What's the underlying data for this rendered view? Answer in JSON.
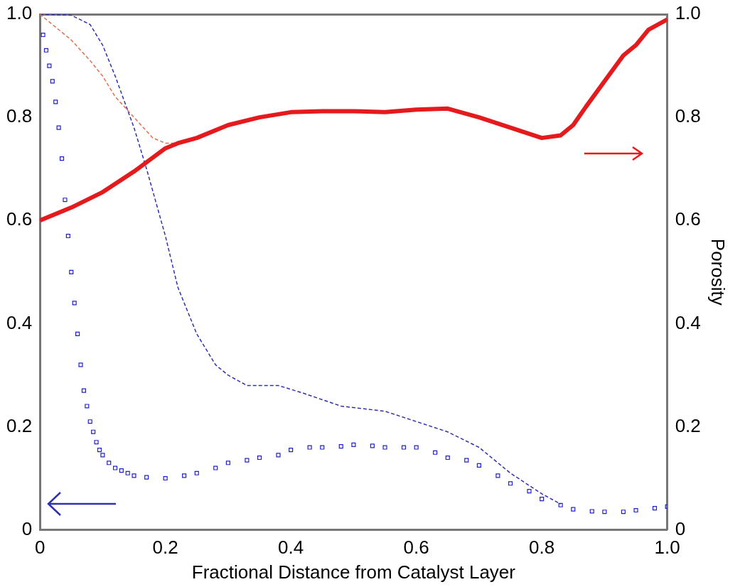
{
  "chart_data": {
    "type": "line",
    "xlabel": "Fractional Distance from Catalyst Layer",
    "y2label": "Porosity",
    "xlim": [
      0,
      1
    ],
    "xticks": [
      0,
      0.2,
      0.4,
      0.6,
      0.8,
      {
        "value": 1,
        "label": "1.0"
      }
    ],
    "ylim": [
      0,
      1
    ],
    "yticks": [
      0,
      0.2,
      0.4,
      0.6,
      0.8,
      {
        "value": 1,
        "label": "1.0"
      }
    ],
    "y2lim": [
      0,
      1
    ],
    "y2ticks": [
      0,
      0.2,
      0.4,
      0.6,
      0.8,
      {
        "value": 1,
        "label": "1.0"
      }
    ],
    "grid": false,
    "legend": false,
    "series": [
      {
        "type": "line",
        "axis": "y2",
        "color": "#e41a1c",
        "line_style": "solid",
        "marker": "none",
        "x": [
          0,
          0.05,
          0.1,
          0.15,
          0.2,
          0.22,
          0.25,
          0.3,
          0.35,
          0.4,
          0.45,
          0.5,
          0.55,
          0.6,
          0.65,
          0.7,
          0.75,
          0.8,
          0.83,
          0.85,
          0.87,
          0.9,
          0.93,
          0.95,
          0.97,
          1.0
        ],
        "values": [
          0.6,
          0.625,
          0.655,
          0.695,
          0.74,
          0.75,
          0.76,
          0.785,
          0.8,
          0.81,
          0.812,
          0.812,
          0.81,
          0.815,
          0.817,
          0.8,
          0.78,
          0.76,
          0.765,
          0.785,
          0.82,
          0.87,
          0.92,
          0.94,
          0.97,
          0.99
        ]
      },
      {
        "type": "line",
        "axis": "y2",
        "color": "#e07050",
        "line_style": "dashed",
        "marker": "none",
        "x": [
          0,
          0.03,
          0.05,
          0.08,
          0.1,
          0.12,
          0.15,
          0.18,
          0.2,
          0.22
        ],
        "values": [
          1.0,
          0.97,
          0.95,
          0.91,
          0.88,
          0.84,
          0.8,
          0.76,
          0.75,
          0.75
        ]
      },
      {
        "type": "line",
        "axis": "y",
        "color": "#3030b0",
        "line_style": "dashed",
        "marker": "none",
        "x": [
          0,
          0.05,
          0.08,
          0.1,
          0.12,
          0.15,
          0.17,
          0.2,
          0.22,
          0.25,
          0.28,
          0.3,
          0.33,
          0.38,
          0.42,
          0.48,
          0.55,
          0.6,
          0.65,
          0.7,
          0.75,
          0.8,
          0.83
        ],
        "values": [
          1.0,
          0.998,
          0.98,
          0.94,
          0.88,
          0.78,
          0.7,
          0.57,
          0.47,
          0.38,
          0.32,
          0.3,
          0.28,
          0.28,
          0.265,
          0.24,
          0.23,
          0.21,
          0.19,
          0.16,
          0.11,
          0.07,
          0.05
        ]
      },
      {
        "type": "scatter",
        "axis": "y",
        "color": "#2020d0",
        "marker": "square",
        "x": [
          0.005,
          0.01,
          0.015,
          0.02,
          0.025,
          0.03,
          0.035,
          0.04,
          0.045,
          0.05,
          0.055,
          0.06,
          0.065,
          0.07,
          0.075,
          0.08,
          0.085,
          0.09,
          0.095,
          0.1,
          0.11,
          0.12,
          0.13,
          0.14,
          0.15,
          0.17,
          0.2,
          0.23,
          0.25,
          0.28,
          0.3,
          0.33,
          0.35,
          0.38,
          0.4,
          0.43,
          0.45,
          0.48,
          0.5,
          0.53,
          0.55,
          0.58,
          0.6,
          0.63,
          0.65,
          0.68,
          0.7,
          0.73,
          0.75,
          0.78,
          0.8,
          0.83,
          0.85,
          0.88,
          0.9,
          0.93,
          0.95,
          0.98,
          1.0
        ],
        "values": [
          0.96,
          0.93,
          0.9,
          0.87,
          0.83,
          0.78,
          0.72,
          0.64,
          0.57,
          0.5,
          0.44,
          0.38,
          0.32,
          0.27,
          0.24,
          0.21,
          0.19,
          0.17,
          0.155,
          0.145,
          0.13,
          0.12,
          0.115,
          0.11,
          0.105,
          0.102,
          0.1,
          0.105,
          0.11,
          0.12,
          0.13,
          0.135,
          0.14,
          0.145,
          0.155,
          0.16,
          0.16,
          0.162,
          0.165,
          0.163,
          0.16,
          0.16,
          0.16,
          0.15,
          0.14,
          0.135,
          0.125,
          0.105,
          0.09,
          0.075,
          0.06,
          0.048,
          0.04,
          0.036,
          0.035,
          0.035,
          0.038,
          0.042,
          0.045
        ]
      }
    ]
  }
}
